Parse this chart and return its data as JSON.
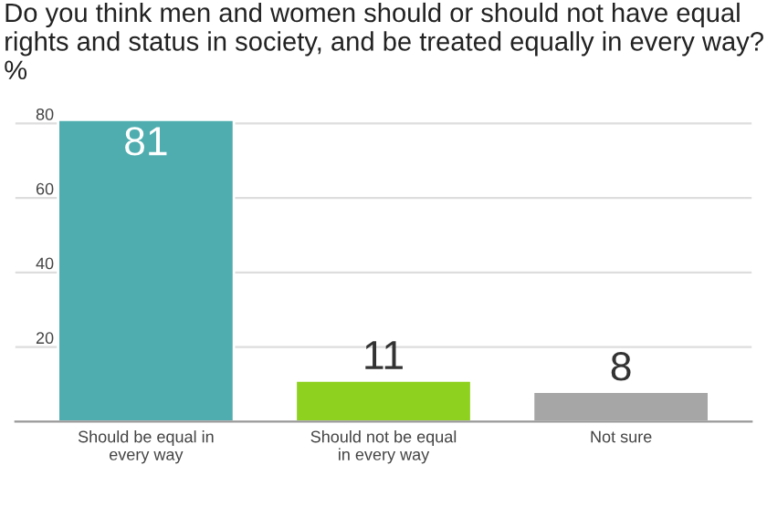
{
  "chart_data": {
    "type": "bar",
    "title": "Do you think men and women should or should not have equal rights and status in society, and be treated equally in every way? %",
    "categories": [
      "Should be equal in\nevery way",
      "Should not be equal\nin every way",
      "Not sure"
    ],
    "values": [
      81,
      11,
      8
    ],
    "colors": [
      "#4fadaf",
      "#8ed11f",
      "#a6a6a6"
    ],
    "ylim": [
      0,
      82
    ],
    "yticks": [
      20,
      40,
      60,
      80
    ],
    "grid": "y",
    "data_labels": true
  }
}
